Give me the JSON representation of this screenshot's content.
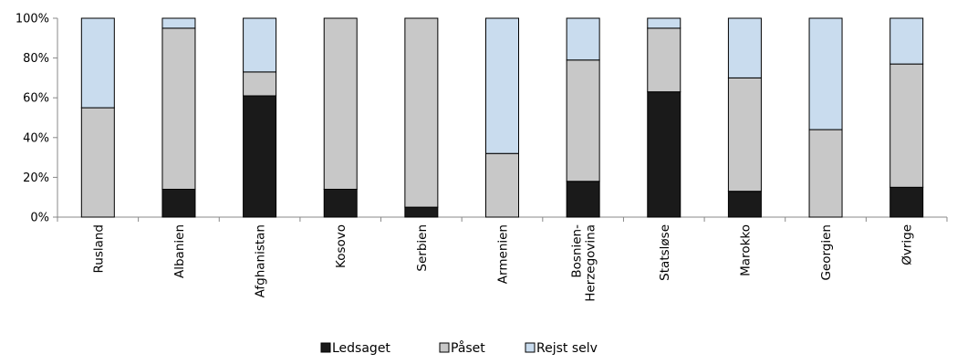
{
  "chart_data": {
    "type": "bar",
    "stacked": true,
    "percent": true,
    "categories": [
      "Rusland",
      "Albanien",
      "Afghanistan",
      "Kosovo",
      "Serbien",
      "Armenien",
      "Bosnien-\nHerzegovina",
      "Statsløse",
      "Marokko",
      "Georgien",
      "Øvrige"
    ],
    "series": [
      {
        "name": "Ledsaget",
        "color": "#1a1a1a",
        "values": [
          0,
          14,
          61,
          14,
          5,
          0,
          18,
          63,
          13,
          0,
          15
        ]
      },
      {
        "name": "Påset",
        "color": "#c8c8c8",
        "values": [
          55,
          81,
          12,
          86,
          95,
          32,
          61,
          32,
          57,
          44,
          62
        ]
      },
      {
        "name": "Rejst selv",
        "color": "#c9dcee",
        "values": [
          45,
          5,
          27,
          0,
          0,
          68,
          21,
          5,
          30,
          56,
          23
        ]
      }
    ],
    "y_ticks": [
      "0%",
      "20%",
      "40%",
      "60%",
      "80%",
      "100%"
    ],
    "ylim": [
      0,
      100
    ],
    "legend_position": "bottom",
    "grid": false
  }
}
